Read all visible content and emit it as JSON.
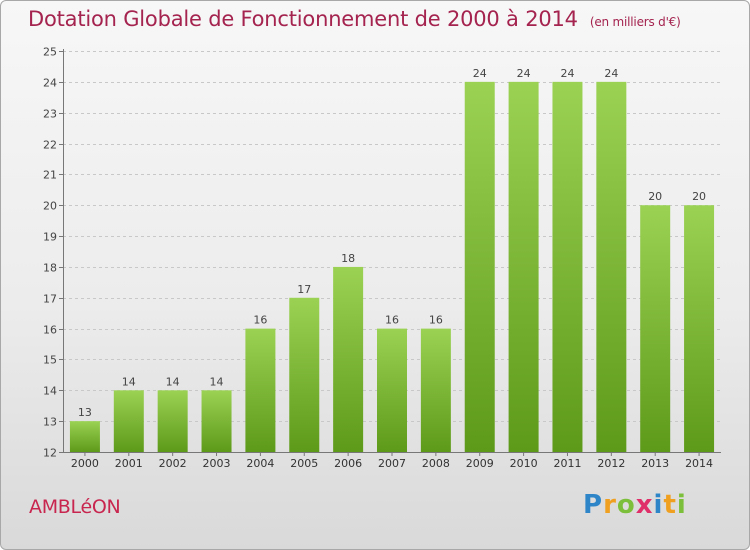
{
  "header": {
    "title": "Dotation Globale de Fonctionnement de 2000 à 2014",
    "subtitle": "(en milliers d'€)"
  },
  "footer": {
    "commune": "AMBLéON",
    "logo": "Proxiti"
  },
  "colors": {
    "title": "#a4234f",
    "bar_light": "#9bd254",
    "bar_dark": "#5e9a1a",
    "grid": "#c8c8c8"
  },
  "chart_data": {
    "type": "bar",
    "title": "Dotation Globale de Fonctionnement de 2000 à 2014",
    "subtitle": "(en milliers d'€)",
    "xlabel": "",
    "ylabel": "",
    "categories": [
      "2000",
      "2001",
      "2002",
      "2003",
      "2004",
      "2005",
      "2006",
      "2007",
      "2008",
      "2009",
      "2010",
      "2011",
      "2012",
      "2013",
      "2014"
    ],
    "values": [
      13,
      14,
      14,
      14,
      16,
      17,
      18,
      16,
      16,
      24,
      24,
      24,
      24,
      20,
      20
    ],
    "ylim": [
      12,
      25
    ],
    "yticks": [
      12,
      13,
      14,
      15,
      16,
      17,
      18,
      19,
      20,
      21,
      22,
      23,
      24,
      25
    ],
    "grid": true,
    "data_labels": true
  }
}
